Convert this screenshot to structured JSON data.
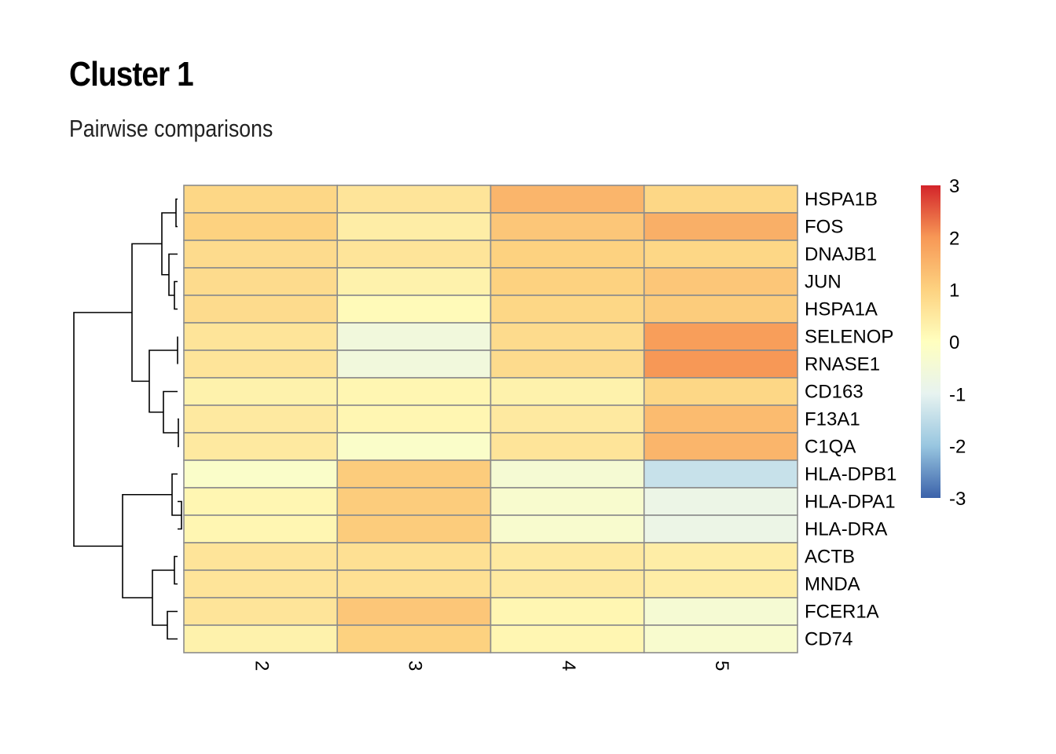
{
  "title": "Cluster 1",
  "subtitle": "Pairwise comparisons",
  "chart_data": {
    "type": "heatmap",
    "columns": [
      "2",
      "3",
      "4",
      "5"
    ],
    "rows": [
      "HSPA1B",
      "FOS",
      "DNAJB1",
      "JUN",
      "HSPA1A",
      "SELENOP",
      "RNASE1",
      "CD163",
      "F13A1",
      "C1QA",
      "HLA-DPB1",
      "HLA-DPA1",
      "HLA-DRA",
      "ACTB",
      "MNDA",
      "FCER1A",
      "CD74"
    ],
    "values": [
      [
        0.9,
        0.6,
        1.5,
        0.9
      ],
      [
        1.0,
        0.4,
        1.2,
        1.6
      ],
      [
        0.8,
        0.6,
        1.0,
        0.9
      ],
      [
        0.8,
        0.3,
        1.0,
        1.2
      ],
      [
        0.8,
        0.1,
        0.9,
        1.1
      ],
      [
        0.6,
        -0.6,
        0.8,
        1.9
      ],
      [
        0.6,
        -0.6,
        0.8,
        2.0
      ],
      [
        0.3,
        0.2,
        0.3,
        0.9
      ],
      [
        0.5,
        0.2,
        0.5,
        1.4
      ],
      [
        0.5,
        -0.2,
        0.6,
        1.5
      ],
      [
        -0.2,
        1.1,
        -0.4,
        -1.4
      ],
      [
        0.2,
        1.1,
        -0.3,
        -0.8
      ],
      [
        0.2,
        1.1,
        -0.3,
        -0.8
      ],
      [
        0.6,
        0.7,
        0.5,
        0.4
      ],
      [
        0.6,
        0.7,
        0.5,
        0.4
      ],
      [
        0.6,
        1.2,
        0.2,
        -0.4
      ],
      [
        0.3,
        1.0,
        0.2,
        -0.3
      ]
    ],
    "color_scale": {
      "min": -3,
      "max": 3,
      "ticks": [
        "3",
        "2",
        "1",
        "0",
        "-1",
        "-2",
        "-3"
      ],
      "colors": [
        "#3B62AA",
        "#98C6E0",
        "#E7F3F0",
        "#FFFFBF",
        "#FDD280",
        "#F79856",
        "#D3242A"
      ]
    },
    "legend_placement": "right",
    "row_dendrogram": true,
    "column_dendrogram": false
  }
}
